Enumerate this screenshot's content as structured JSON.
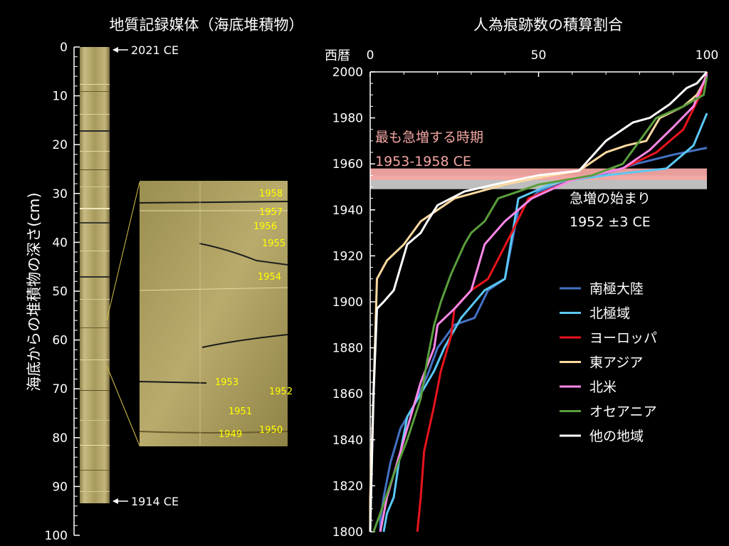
{
  "left_panel": {
    "title": "地質記録媒体（海底堆積物）",
    "ylabel": "海底からの堆積物の深さ(cm)",
    "y_ticks": [
      "0",
      "10",
      "20",
      "30",
      "40",
      "50",
      "60",
      "70",
      "80",
      "90",
      "100"
    ],
    "top_marker": "2021 CE",
    "bottom_marker": "1914 CE",
    "zoom_year_labels": [
      "1958",
      "1957",
      "1956",
      "1955",
      "1954",
      "1953",
      "1952",
      "1951",
      "1949",
      "1950"
    ],
    "label_color": "#ffff00"
  },
  "chart_data": {
    "type": "line",
    "title": "人為痕跡数の積算割合",
    "ylabel": "西暦",
    "xlabel": "",
    "xlim": [
      0,
      100
    ],
    "ylim": [
      1800,
      2000
    ],
    "x_ticks": [
      "0",
      "50",
      "100"
    ],
    "y_ticks": [
      "2000",
      "1980",
      "1960",
      "1940",
      "1920",
      "1900",
      "1880",
      "1860",
      "1840",
      "1820",
      "1800"
    ],
    "annotations": {
      "rapid_increase_label": "最も急増する時期",
      "rapid_increase_range": "1953-1958 CE",
      "rapid_increase_band": [
        1953,
        1958
      ],
      "rapid_increase_color": "#f4a7a3",
      "onset_label": "急増の始まり",
      "onset_value": "1952 ±3 CE",
      "onset_band": [
        1949,
        1955
      ],
      "onset_color": "#c8c8c8"
    },
    "legend_position": "right",
    "series": [
      {
        "name": "南極大陸",
        "color": "#4472c4",
        "points": [
          [
            3,
            1800
          ],
          [
            3,
            1805
          ],
          [
            4,
            1815
          ],
          [
            6,
            1830
          ],
          [
            9,
            1845
          ],
          [
            13,
            1855
          ],
          [
            17,
            1868
          ],
          [
            20,
            1880
          ],
          [
            25,
            1890
          ],
          [
            31,
            1893
          ],
          [
            35,
            1905
          ],
          [
            40,
            1910
          ],
          [
            44,
            1940
          ],
          [
            50,
            1948
          ],
          [
            60,
            1953
          ],
          [
            70,
            1956
          ],
          [
            79,
            1960
          ],
          [
            90,
            1964
          ],
          [
            100,
            1967
          ]
        ]
      },
      {
        "name": "北極域",
        "color": "#5bc8f5",
        "points": [
          [
            4,
            1800
          ],
          [
            5,
            1808
          ],
          [
            7,
            1815
          ],
          [
            9,
            1835
          ],
          [
            11,
            1850
          ],
          [
            15,
            1860
          ],
          [
            19,
            1870
          ],
          [
            22,
            1880
          ],
          [
            27,
            1893
          ],
          [
            34,
            1905
          ],
          [
            40,
            1910
          ],
          [
            44,
            1945
          ],
          [
            55,
            1952
          ],
          [
            70,
            1955
          ],
          [
            88,
            1958
          ],
          [
            96,
            1968
          ],
          [
            100,
            1982
          ]
        ]
      },
      {
        "name": "ヨーロッパ",
        "color": "#e8141c",
        "points": [
          [
            14,
            1800
          ],
          [
            15,
            1815
          ],
          [
            16,
            1835
          ],
          [
            19,
            1855
          ],
          [
            21,
            1870
          ],
          [
            23,
            1880
          ],
          [
            24,
            1885
          ],
          [
            25,
            1897
          ],
          [
            30,
            1905
          ],
          [
            35,
            1910
          ],
          [
            42,
            1930
          ],
          [
            47,
            1945
          ],
          [
            60,
            1953
          ],
          [
            75,
            1958
          ],
          [
            85,
            1965
          ],
          [
            93,
            1975
          ],
          [
            98,
            1990
          ],
          [
            100,
            2000
          ]
        ]
      },
      {
        "name": "東アジア",
        "color": "#fdd9a0",
        "points": [
          [
            0,
            1800
          ],
          [
            0,
            1815
          ],
          [
            1,
            1860
          ],
          [
            2,
            1910
          ],
          [
            5,
            1918
          ],
          [
            10,
            1925
          ],
          [
            15,
            1935
          ],
          [
            25,
            1945
          ],
          [
            40,
            1951
          ],
          [
            50,
            1954
          ],
          [
            62,
            1957
          ],
          [
            70,
            1965
          ],
          [
            76,
            1968
          ],
          [
            82,
            1970
          ],
          [
            86,
            1980
          ],
          [
            93,
            1985
          ],
          [
            97,
            1990
          ],
          [
            100,
            1998
          ]
        ]
      },
      {
        "name": "北米",
        "color": "#ff88e8",
        "points": [
          [
            3,
            1800
          ],
          [
            5,
            1815
          ],
          [
            10,
            1840
          ],
          [
            15,
            1865
          ],
          [
            19,
            1880
          ],
          [
            20,
            1890
          ],
          [
            25,
            1897
          ],
          [
            30,
            1905
          ],
          [
            34,
            1925
          ],
          [
            40,
            1935
          ],
          [
            48,
            1945
          ],
          [
            60,
            1953
          ],
          [
            75,
            1958
          ],
          [
            83,
            1966
          ],
          [
            90,
            1976
          ],
          [
            96,
            1985
          ],
          [
            100,
            1999
          ]
        ]
      },
      {
        "name": "オセアニア",
        "color": "#5a9e3c",
        "points": [
          [
            1,
            1800
          ],
          [
            3,
            1808
          ],
          [
            7,
            1825
          ],
          [
            11,
            1840
          ],
          [
            15,
            1858
          ],
          [
            17,
            1875
          ],
          [
            19,
            1890
          ],
          [
            21,
            1900
          ],
          [
            24,
            1912
          ],
          [
            28,
            1925
          ],
          [
            30,
            1930
          ],
          [
            34,
            1935
          ],
          [
            38,
            1945
          ],
          [
            50,
            1951
          ],
          [
            66,
            1955
          ],
          [
            75,
            1960
          ],
          [
            80,
            1970
          ],
          [
            85,
            1980
          ],
          [
            93,
            1985
          ],
          [
            99,
            1990
          ],
          [
            100,
            1998
          ]
        ]
      },
      {
        "name": "他の地域",
        "color": "#ffffff",
        "points": [
          [
            0,
            1800
          ],
          [
            1,
            1860
          ],
          [
            2,
            1897
          ],
          [
            4,
            1900
          ],
          [
            7,
            1905
          ],
          [
            11,
            1925
          ],
          [
            15,
            1930
          ],
          [
            17,
            1935
          ],
          [
            20,
            1942
          ],
          [
            28,
            1948
          ],
          [
            40,
            1952
          ],
          [
            50,
            1955
          ],
          [
            62,
            1957
          ],
          [
            70,
            1970
          ],
          [
            78,
            1978
          ],
          [
            83,
            1980
          ],
          [
            89,
            1986
          ],
          [
            94,
            1993
          ],
          [
            97,
            1995
          ],
          [
            100,
            2000
          ]
        ]
      }
    ]
  }
}
